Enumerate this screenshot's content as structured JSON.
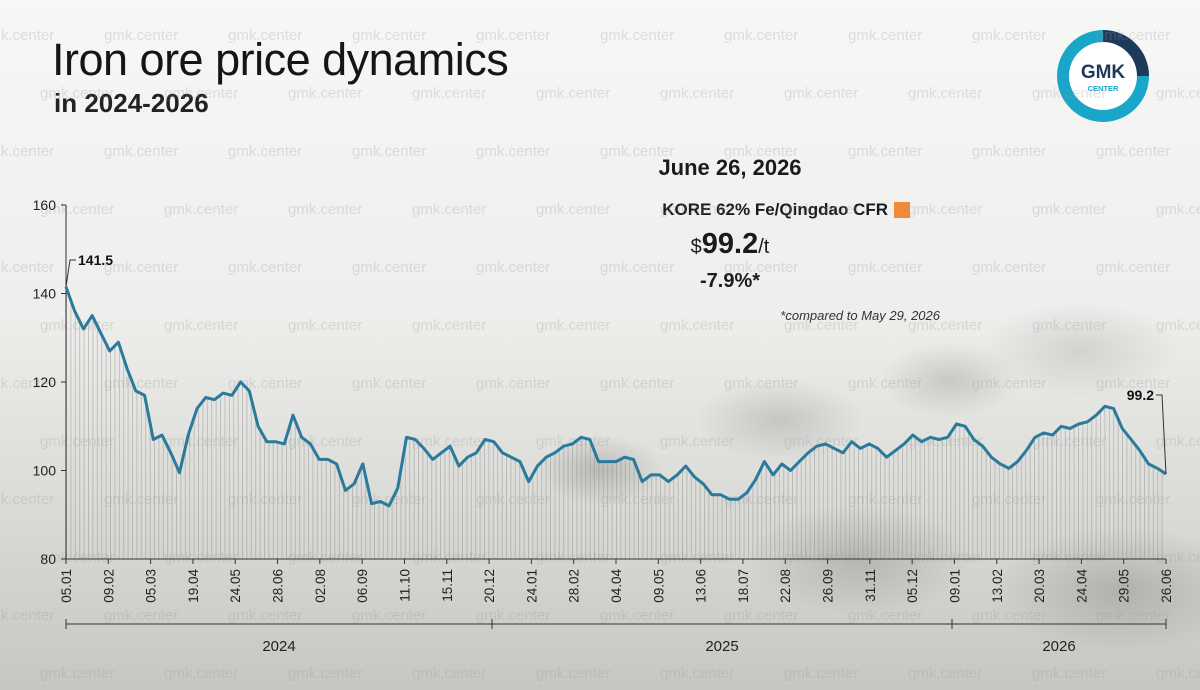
{
  "header": {
    "title": "Iron ore price dynamics",
    "subtitle": "in 2024-2026"
  },
  "logo": {
    "line1": "GMK",
    "line2": "CENTER",
    "ring_color": "#1aa6c8",
    "dark_color": "#1e3a5a"
  },
  "info_box": {
    "date": "June 26, 2026",
    "series_name": "KORE 62% Fe/Qingdao CFR",
    "price_prefix": "$",
    "price_value": "99.2",
    "price_unit": "/t",
    "change": "-7.9%*",
    "footnote": "*compared to May 29, 2026",
    "swatch_color": "#ee8a3a"
  },
  "watermark_text": "gmk.center",
  "chart_data": {
    "type": "line",
    "line_color": "#2a7a9c",
    "y_ticks": [
      80,
      100,
      120,
      140,
      160
    ],
    "ylim": [
      80,
      160
    ],
    "x_tick_labels": [
      "05.01",
      "09.02",
      "05.03",
      "19.04",
      "24.05",
      "28.06",
      "02.08",
      "06.09",
      "11.10",
      "15.11",
      "20.12",
      "24.01",
      "28.02",
      "04.04",
      "09.05",
      "13.06",
      "18.07",
      "22.08",
      "26.09",
      "31.11",
      "05.12",
      "09.01",
      "13.02",
      "20.03",
      "24.04",
      "29.05",
      "26.06"
    ],
    "year_labels": [
      "2024",
      "2025",
      "2026"
    ],
    "annotations": [
      {
        "label": "141.5",
        "index": 0
      },
      {
        "label": "99.2",
        "index": -1
      }
    ],
    "values": [
      141.5,
      136,
      132,
      135,
      131,
      127,
      129,
      123,
      118,
      117,
      107,
      108,
      104,
      99.5,
      108,
      114,
      116.5,
      116,
      117.5,
      117,
      120,
      118,
      110,
      106.5,
      106.5,
      106,
      112.5,
      107.5,
      106,
      102.5,
      102.5,
      101.5,
      95.5,
      97,
      101.5,
      92.5,
      93,
      92,
      96,
      107.5,
      107,
      105,
      102.5,
      104,
      105.5,
      101,
      103,
      104,
      107,
      106.5,
      104,
      103,
      102,
      97.5,
      101,
      103,
      104,
      105.5,
      106,
      107.5,
      107,
      102,
      102,
      102,
      103,
      102.5,
      97.5,
      99,
      99,
      97.5,
      99,
      101,
      98.5,
      97,
      94.5,
      94.5,
      93.5,
      93.5,
      95,
      98,
      102,
      99,
      101.5,
      100,
      102,
      104,
      105.5,
      106,
      105,
      104,
      106.5,
      105,
      106,
      105,
      103,
      104.5,
      106,
      108,
      106.5,
      107.5,
      107,
      107.5,
      110.5,
      110,
      107,
      105.5,
      103,
      101.5,
      100.5,
      102,
      104.5,
      107.5,
      108.5,
      108,
      110,
      109.5,
      110.5,
      111,
      112.5,
      114.5,
      114,
      109.5,
      107,
      104.5,
      101.5,
      100.5,
      99.2
    ]
  }
}
